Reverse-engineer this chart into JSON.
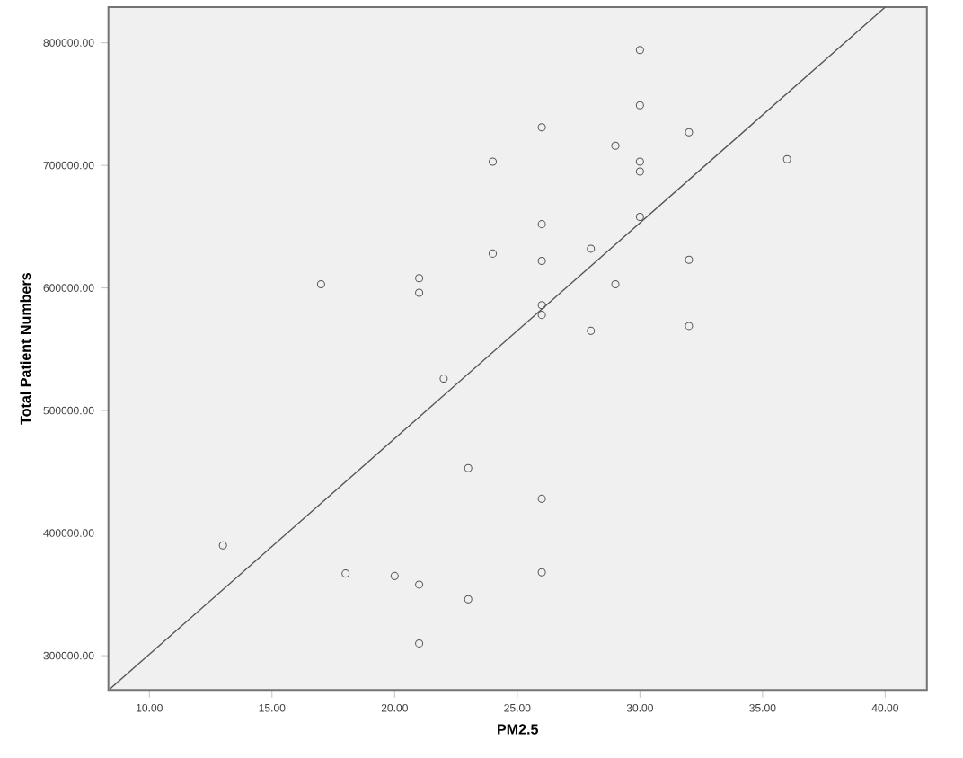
{
  "chart_data": {
    "type": "scatter",
    "xlabel": "PM2.5",
    "ylabel": "Total Patient Numbers",
    "xlim": [
      8.33,
      41.7
    ],
    "ylim": [
      272000,
      829000
    ],
    "xticks": [
      {
        "value": 10,
        "label": "10.00"
      },
      {
        "value": 15,
        "label": "15.00"
      },
      {
        "value": 20,
        "label": "20.00"
      },
      {
        "value": 25,
        "label": "25.00"
      },
      {
        "value": 30,
        "label": "30.00"
      },
      {
        "value": 35,
        "label": "35.00"
      },
      {
        "value": 40,
        "label": "40.00"
      }
    ],
    "yticks": [
      {
        "value": 300000,
        "label": "300000.00"
      },
      {
        "value": 400000,
        "label": "400000.00"
      },
      {
        "value": 500000,
        "label": "500000.00"
      },
      {
        "value": 600000,
        "label": "600000.00"
      },
      {
        "value": 700000,
        "label": "700000.00"
      },
      {
        "value": 800000,
        "label": "800000.00"
      }
    ],
    "grid": false,
    "series": [
      {
        "marker": "circle",
        "color": "#555555",
        "x": [
          13,
          17,
          18,
          20,
          21,
          21,
          21,
          21,
          22,
          23,
          23,
          24,
          24,
          26,
          26,
          26,
          26,
          26,
          26,
          26,
          28,
          28,
          29,
          29,
          30,
          30,
          30,
          30,
          30,
          32,
          32,
          32,
          36
        ],
        "values": [
          390000,
          603000,
          367000,
          365000,
          358000,
          310000,
          608000,
          596000,
          526000,
          453000,
          346000,
          703000,
          628000,
          731000,
          652000,
          622000,
          586000,
          578000,
          428000,
          368000,
          632000,
          565000,
          716000,
          603000,
          794000,
          749000,
          703000,
          695000,
          658000,
          727000,
          623000,
          569000,
          705000
        ]
      },
      {
        "type": "line",
        "marker": "none",
        "color": "#555555",
        "x": [
          8.4,
          40
        ],
        "values": [
          273000,
          829000
        ]
      }
    ]
  }
}
